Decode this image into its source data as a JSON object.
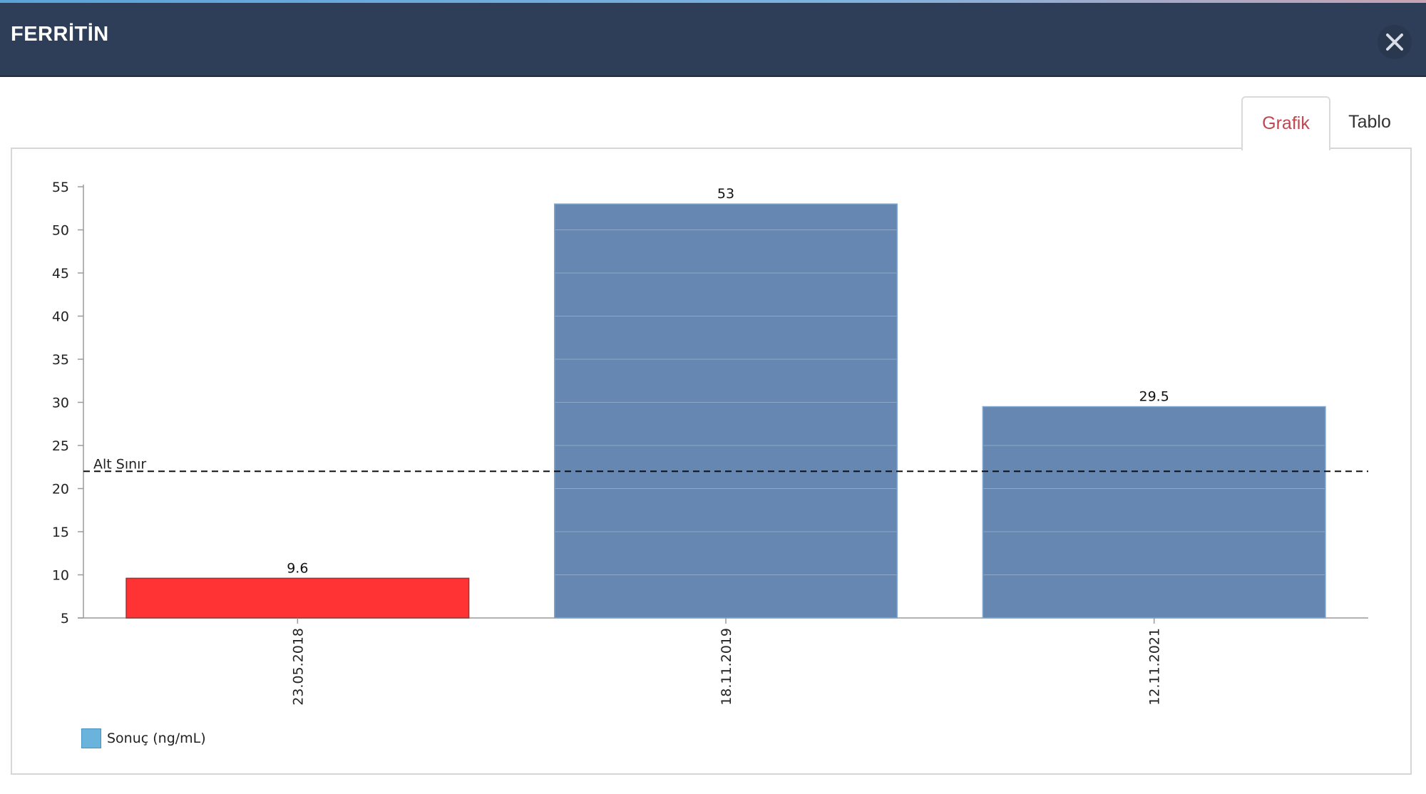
{
  "dialog": {
    "title": "FERRİTİN",
    "close_icon": "close-icon"
  },
  "tabs": [
    {
      "label": "Grafik",
      "active": true
    },
    {
      "label": "Tablo",
      "active": false
    }
  ],
  "colors": {
    "header_bg": "#2e3e58",
    "bar_normal": "#6587b2",
    "bar_low": "#ff3333",
    "active_tab": "#c0474f",
    "legend_swatch": "#6ab3dc"
  },
  "chart_data": {
    "type": "bar",
    "title": "",
    "xlabel": "",
    "ylabel": "",
    "categories": [
      "23.05.2018",
      "18.11.2019",
      "12.11.2021"
    ],
    "series": [
      {
        "name": "Sonuç (ng/mL)",
        "values": [
          9.6,
          53,
          29.5
        ],
        "data_labels": [
          "9.6",
          "53",
          "29.5"
        ],
        "below_limit": [
          true,
          false,
          false
        ]
      }
    ],
    "ylim": [
      5,
      55
    ],
    "yticks": [
      5,
      10,
      15,
      20,
      25,
      30,
      35,
      40,
      45,
      50,
      55
    ],
    "reference_line": {
      "label": "Alt Sınır",
      "value": 22,
      "style": "dashed"
    },
    "grid": false,
    "legend_position": "bottom-left",
    "x_tick_rotation": "vertical"
  }
}
